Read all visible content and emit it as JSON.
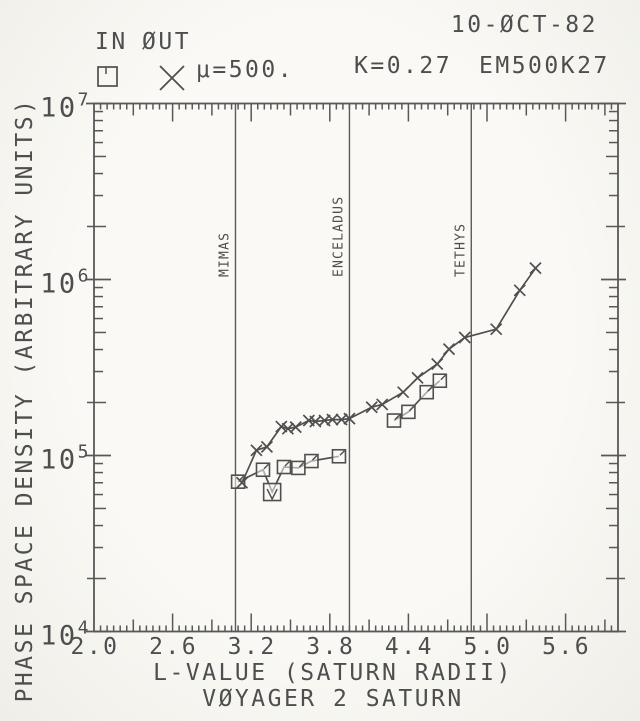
{
  "header": {
    "date": "10-ØCT-82",
    "legend_in": "IN",
    "legend_out": "ØUT",
    "mu": "μ=500.",
    "k": "K=0.27",
    "run_id": "EM500K27"
  },
  "axes": {
    "y_title": "PHASE SPACE DENSITY (ARBITRARY UNITS)",
    "x_title": "L-VALUE (SATURN RADII)",
    "x_subtitle": "VØYAGER 2 SATURN"
  },
  "chart_data": {
    "type": "line",
    "title": "Voyager 2 Saturn phase space density, mu=500, K=0.27 (EM500K27), 10-OCT-82",
    "x_label": "L-VALUE (SATURN RADII)",
    "y_label": "PHASE SPACE DENSITY (ARBITRARY UNITS)",
    "x_range": [
      2.0,
      6.0
    ],
    "y_range": [
      10000.0,
      10000000.0
    ],
    "y_scale": "log",
    "grid": false,
    "x_tick_labels": [
      "2.0",
      "2.6",
      "3.2",
      "3.8",
      "4.4",
      "5.0",
      "5.6"
    ],
    "x_tick_values": [
      2.0,
      2.6,
      3.2,
      3.8,
      4.4,
      5.0,
      5.6
    ],
    "y_tick_exponents": [
      4,
      5,
      6,
      7
    ],
    "reference_lines": [
      {
        "label": "MIMAS",
        "x": 3.08
      },
      {
        "label": "ENCELADUS",
        "x": 3.95
      },
      {
        "label": "TETHYS",
        "x": 4.88
      }
    ],
    "series": [
      {
        "name": "IN",
        "marker": "square",
        "segments": [
          [
            [
              3.1,
              71000.0
            ],
            [
              3.29,
              83000.0
            ],
            [
              3.36,
              62000.0,
              "limit"
            ],
            [
              3.45,
              86000.0
            ],
            [
              3.56,
              85000.0
            ],
            [
              3.66,
              93000.0
            ],
            [
              3.87,
              99000.0
            ]
          ],
          [
            [
              4.29,
              158000.0
            ],
            [
              4.4,
              177000.0
            ],
            [
              4.54,
              229000.0
            ],
            [
              4.64,
              266000.0
            ]
          ]
        ]
      },
      {
        "name": "OUT",
        "marker": "x",
        "segments": [
          [
            [
              3.13,
              70000.0
            ],
            [
              3.24,
              107000.0
            ],
            [
              3.32,
              112000.0
            ],
            [
              3.43,
              146000.0
            ],
            [
              3.48,
              142000.0
            ],
            [
              3.54,
              145000.0
            ],
            [
              3.64,
              158000.0
            ],
            [
              3.69,
              156000.0
            ],
            [
              3.76,
              158000.0
            ],
            [
              3.82,
              160000.0
            ],
            [
              3.89,
              160000.0
            ],
            [
              3.95,
              162000.0
            ],
            [
              4.12,
              188000.0
            ],
            [
              4.2,
              195000.0
            ],
            [
              4.36,
              229000.0
            ],
            [
              4.47,
              276000.0
            ],
            [
              4.62,
              331000.0
            ],
            [
              4.71,
              402000.0
            ],
            [
              4.83,
              468000.0
            ],
            [
              5.07,
              522000.0
            ],
            [
              5.25,
              868000.0
            ],
            [
              5.37,
              1160000.0
            ]
          ]
        ]
      }
    ]
  }
}
